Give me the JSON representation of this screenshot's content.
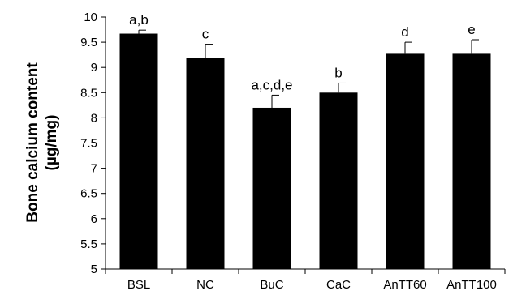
{
  "chart_data": {
    "type": "bar",
    "categories": [
      "BSL",
      "NC",
      "BuC",
      "CaC",
      "AnTT60",
      "AnTT100"
    ],
    "values": [
      9.67,
      9.18,
      8.2,
      8.5,
      9.27,
      9.27
    ],
    "errors": [
      0.07,
      0.28,
      0.25,
      0.19,
      0.23,
      0.28
    ],
    "significance_labels": [
      "a,b",
      "c",
      "a,c,d,e",
      "b",
      "d",
      "e"
    ],
    "ylabel_line1": "Bone calcium content",
    "ylabel_line2": "(µg/mg)",
    "xlabel": "",
    "title": "",
    "ylim": [
      5,
      10
    ],
    "yticks": [
      "5",
      "5.5",
      "6",
      "6.5",
      "7",
      "7.5",
      "8",
      "8.5",
      "9",
      "9.5",
      "10"
    ],
    "grid": false,
    "bar_color": "#000000"
  }
}
